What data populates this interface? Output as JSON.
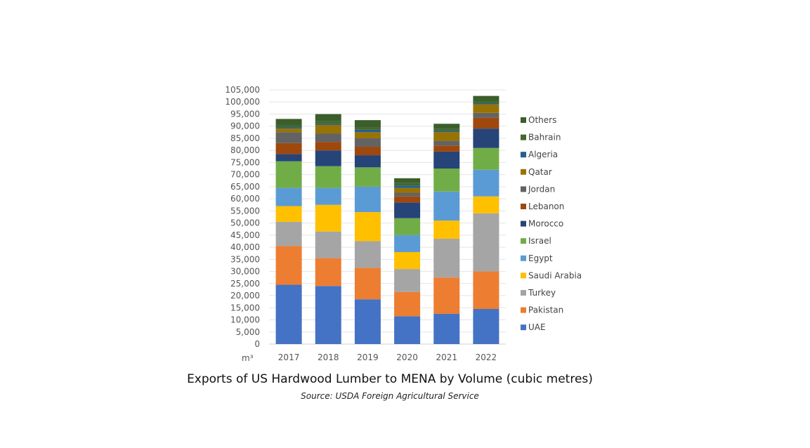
{
  "chart_data": {
    "type": "bar",
    "stacked": true,
    "title": "Exports of US Hardwood Lumber to MENA by Volume (cubic metres)",
    "subtitle": "Source: USDA Foreign Agricultural Service",
    "xlabel": "",
    "ylabel": "m³",
    "ylim": [
      0,
      105000
    ],
    "ytick_step": 5000,
    "grid": true,
    "legend_position": "right",
    "categories": [
      "2017",
      "2018",
      "2019",
      "2020",
      "2021",
      "2022"
    ],
    "series": [
      {
        "name": "UAE",
        "color": "#4472C4",
        "values": [
          24500,
          24000,
          18500,
          11500,
          12500,
          14500
        ]
      },
      {
        "name": "Pakistan",
        "color": "#ED7D31",
        "values": [
          16000,
          11500,
          13000,
          10000,
          15000,
          15500
        ]
      },
      {
        "name": "Turkey",
        "color": "#A5A5A5",
        "values": [
          10000,
          11000,
          11000,
          9500,
          16000,
          24000
        ]
      },
      {
        "name": "Saudi Arabia",
        "color": "#FFC000",
        "values": [
          6500,
          11000,
          12000,
          7000,
          7500,
          7000
        ]
      },
      {
        "name": "Egypt",
        "color": "#5B9BD5",
        "values": [
          7500,
          7000,
          10500,
          7000,
          12000,
          11000
        ]
      },
      {
        "name": "Israel",
        "color": "#70AD47",
        "values": [
          11000,
          9000,
          8000,
          7000,
          9500,
          9000
        ]
      },
      {
        "name": "Morocco",
        "color": "#264478",
        "values": [
          3000,
          6500,
          5000,
          6500,
          7000,
          8000
        ]
      },
      {
        "name": "Lebanon",
        "color": "#9E480E",
        "values": [
          4500,
          3500,
          3500,
          2500,
          2500,
          4500
        ]
      },
      {
        "name": "Jordan",
        "color": "#636363",
        "values": [
          4500,
          3500,
          3500,
          1500,
          2000,
          2000
        ]
      },
      {
        "name": "Qatar",
        "color": "#997300",
        "values": [
          1500,
          3500,
          2500,
          2000,
          3500,
          3500
        ]
      },
      {
        "name": "Algeria",
        "color": "#255E91",
        "values": [
          500,
          500,
          1000,
          1000,
          500,
          500
        ]
      },
      {
        "name": "Bahrain",
        "color": "#43682B",
        "values": [
          1000,
          1000,
          1000,
          1000,
          1000,
          1000
        ]
      },
      {
        "name": "Others",
        "color": "#3B5E2A",
        "values": [
          2500,
          3000,
          3000,
          2000,
          2000,
          2000
        ]
      }
    ]
  }
}
